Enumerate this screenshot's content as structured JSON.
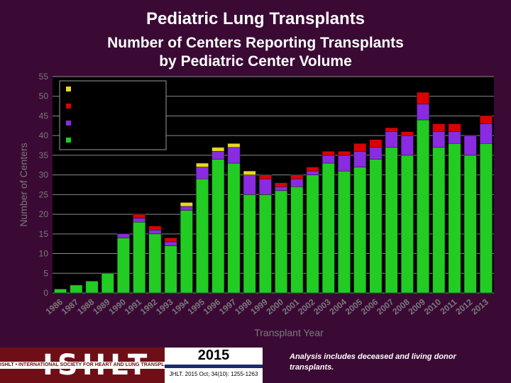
{
  "header": {
    "title": "Pediatric Lung Transplants",
    "subtitle_line1": "Number of Centers Reporting Transplants",
    "subtitle_line2": "by Pediatric Center Volume"
  },
  "footer": {
    "logo_text": "ISHLT",
    "logo_subtitle": "ISHLT • INTERNATIONAL SOCIETY FOR HEART AND LUNG TRANSPLANTATION",
    "year": "2015",
    "citation": "JHLT. 2015 Oct; 34(10): 1255-1263",
    "note": "Analysis includes deceased and living donor transplants."
  },
  "colors": {
    "background": "#3a0a35",
    "plot_background": "#000000",
    "green": "#22cc22",
    "purple": "#8a2be2",
    "red": "#dd0000",
    "yellow": "#e8d820"
  },
  "chart_data": {
    "type": "bar",
    "stacked": true,
    "title": "",
    "xlabel": "Transplant Year",
    "ylabel": "Number of Centers",
    "ylim": [
      0,
      55
    ],
    "yticks": [
      0,
      5,
      10,
      15,
      20,
      25,
      30,
      35,
      40,
      45,
      50,
      55
    ],
    "grid": true,
    "legend": "top-left",
    "categories": [
      "1986",
      "1987",
      "1988",
      "1989",
      "1990",
      "1991",
      "1992",
      "1993",
      "1994",
      "1995",
      "1996",
      "1997",
      "1998",
      "1999",
      "2000",
      "2001",
      "2002",
      "2003",
      "2004",
      "2005",
      "2006",
      "2007",
      "2008",
      "2009",
      "2010",
      "2011",
      "2012",
      "2013"
    ],
    "series": [
      {
        "color": "#22cc22",
        "values": [
          1,
          2,
          3,
          5,
          14,
          18,
          15,
          12,
          21,
          29,
          34,
          33,
          25,
          25,
          26,
          27,
          30,
          33,
          31,
          32,
          34,
          37,
          35,
          44,
          37,
          38,
          35,
          38
        ]
      },
      {
        "color": "#8a2be2",
        "values": [
          0,
          0,
          0,
          0,
          1,
          1,
          1,
          1,
          1,
          3,
          2,
          4,
          5,
          4,
          1,
          2,
          1,
          2,
          4,
          4,
          3,
          4,
          5,
          4,
          4,
          3,
          5,
          5
        ]
      },
      {
        "color": "#dd0000",
        "values": [
          0,
          0,
          0,
          0,
          0,
          1,
          1,
          1,
          0,
          0,
          0,
          0,
          0,
          1,
          1,
          1,
          1,
          1,
          1,
          2,
          2,
          1,
          1,
          3,
          2,
          2,
          0,
          2
        ]
      },
      {
        "color": "#e8d820",
        "values": [
          0,
          0,
          0,
          0,
          0,
          0,
          0,
          0,
          1,
          1,
          1,
          1,
          1,
          0,
          0,
          0,
          0,
          0,
          0,
          0,
          0,
          0,
          0,
          0,
          0,
          0,
          0,
          0
        ]
      }
    ]
  }
}
